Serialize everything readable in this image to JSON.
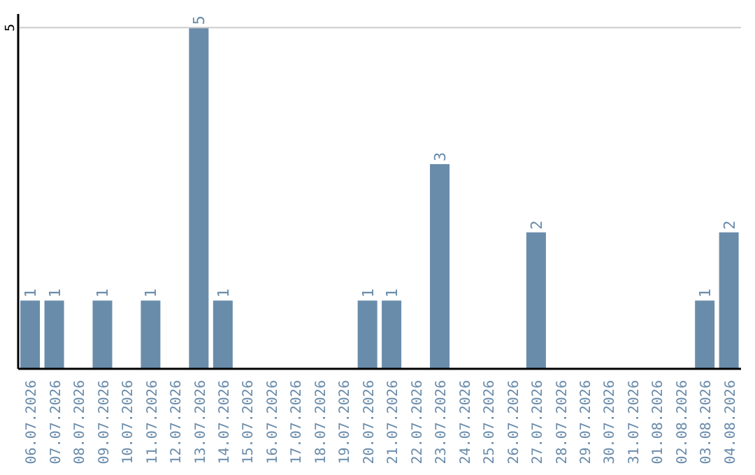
{
  "chart_data": {
    "type": "bar",
    "categories": [
      "06.07.2026",
      "07.07.2026",
      "08.07.2026",
      "09.07.2026",
      "10.07.2026",
      "11.07.2026",
      "12.07.2026",
      "13.07.2026",
      "14.07.2026",
      "15.07.2026",
      "16.07.2026",
      "17.07.2026",
      "18.07.2026",
      "19.07.2026",
      "20.07.2026",
      "21.07.2026",
      "22.07.2026",
      "23.07.2026",
      "24.07.2026",
      "25.07.2026",
      "26.07.2026",
      "27.07.2026",
      "28.07.2026",
      "29.07.2026",
      "30.07.2026",
      "31.07.2026",
      "01.08.2026",
      "02.08.2026",
      "03.08.2026",
      "04.08.2026"
    ],
    "values": [
      1,
      1,
      0,
      1,
      0,
      1,
      0,
      5,
      1,
      0,
      0,
      0,
      0,
      0,
      1,
      1,
      0,
      3,
      0,
      0,
      0,
      2,
      0,
      0,
      0,
      0,
      0,
      0,
      1,
      2
    ],
    "value_labels": [
      "1",
      "1",
      null,
      "1",
      null,
      "1",
      null,
      "5",
      "1",
      null,
      null,
      null,
      null,
      null,
      "1",
      "1",
      null,
      "3",
      null,
      null,
      null,
      "2",
      null,
      null,
      null,
      null,
      null,
      null,
      "1",
      "2"
    ],
    "color": "#6a8cab",
    "ylim": [
      0,
      5.2
    ],
    "yticks": [
      5
    ],
    "grid": "y"
  }
}
